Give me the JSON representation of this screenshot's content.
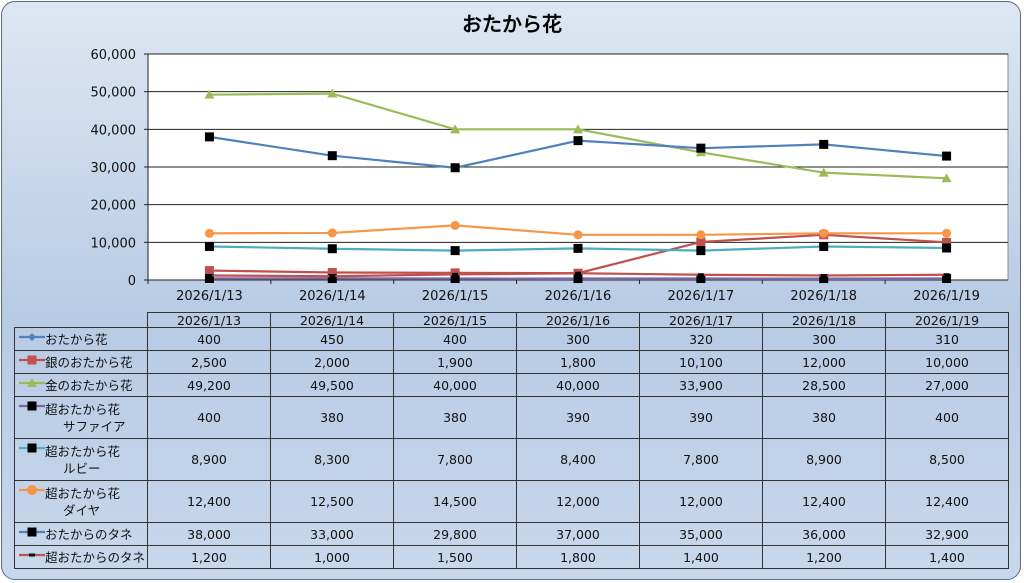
{
  "chart_data": {
    "type": "line",
    "title": "おたから花",
    "categories": [
      "2026/1/13",
      "2026/1/14",
      "2026/1/15",
      "2026/1/16",
      "2026/1/17",
      "2026/1/18",
      "2026/1/19"
    ],
    "ylim": [
      0,
      60000
    ],
    "yticks": [
      "0",
      "10,000",
      "20,000",
      "30,000",
      "40,000",
      "50,000",
      "60,000"
    ],
    "ytick_values": [
      0,
      10000,
      20000,
      30000,
      40000,
      50000,
      60000
    ],
    "grid": true,
    "legend": "data-table",
    "series": [
      {
        "name": "おたから花",
        "name_line2": "",
        "color": "#4F81BD",
        "marker": "diamond",
        "marker_color": "#4F81BD",
        "values": [
          400,
          450,
          400,
          300,
          320,
          300,
          310
        ],
        "labels": [
          "400",
          "450",
          "400",
          "300",
          "320",
          "300",
          "310"
        ]
      },
      {
        "name": "銀のおたから花",
        "name_line2": "",
        "color": "#C0504D",
        "marker": "square",
        "marker_color": "#C0504D",
        "values": [
          2500,
          2000,
          1900,
          1800,
          10100,
          12000,
          10000
        ],
        "labels": [
          "2,500",
          "2,000",
          "1,900",
          "1,800",
          "10,100",
          "12,000",
          "10,000"
        ]
      },
      {
        "name": "金のおたから花",
        "name_line2": "",
        "color": "#9BBB59",
        "marker": "triangle",
        "marker_color": "#9BBB59",
        "values": [
          49200,
          49500,
          40000,
          40000,
          33900,
          28500,
          27000
        ],
        "labels": [
          "49,200",
          "49,500",
          "40,000",
          "40,000",
          "33,900",
          "28,500",
          "27,000"
        ]
      },
      {
        "name": "超おたから花",
        "name_line2": "サファイア",
        "color": "#8064A2",
        "marker": "square",
        "marker_color": "#000000",
        "values": [
          400,
          380,
          380,
          390,
          390,
          380,
          400
        ],
        "labels": [
          "400",
          "380",
          "380",
          "390",
          "390",
          "380",
          "400"
        ]
      },
      {
        "name": "超おたから花",
        "name_line2": "ルビー",
        "color": "#4BACC6",
        "marker": "square",
        "marker_color": "#000000",
        "values": [
          8900,
          8300,
          7800,
          8400,
          7800,
          8900,
          8500
        ],
        "labels": [
          "8,900",
          "8,300",
          "7,800",
          "8,400",
          "7,800",
          "8,900",
          "8,500"
        ]
      },
      {
        "name": "超おたから花",
        "name_line2": "ダイヤ",
        "color": "#F79646",
        "marker": "circle",
        "marker_color": "#F79646",
        "values": [
          12400,
          12500,
          14500,
          12000,
          12000,
          12400,
          12400
        ],
        "labels": [
          "12,400",
          "12,500",
          "14,500",
          "12,000",
          "12,000",
          "12,400",
          "12,400"
        ]
      },
      {
        "name": "おたからのタネ",
        "name_line2": "",
        "color": "#4F81BD",
        "marker": "square",
        "marker_color": "#000000",
        "values": [
          38000,
          33000,
          29800,
          37000,
          35000,
          36000,
          32900
        ],
        "labels": [
          "38,000",
          "33,000",
          "29,800",
          "37,000",
          "35,000",
          "36,000",
          "32,900"
        ]
      },
      {
        "name": "超おたからのタネ",
        "name_line2": "",
        "color": "#C0504D",
        "marker": "dash",
        "marker_color": "#000000",
        "values": [
          1200,
          1000,
          1500,
          1800,
          1400,
          1200,
          1400
        ],
        "labels": [
          "1,200",
          "1,000",
          "1,500",
          "1,800",
          "1,400",
          "1,200",
          "1,400"
        ]
      }
    ]
  }
}
